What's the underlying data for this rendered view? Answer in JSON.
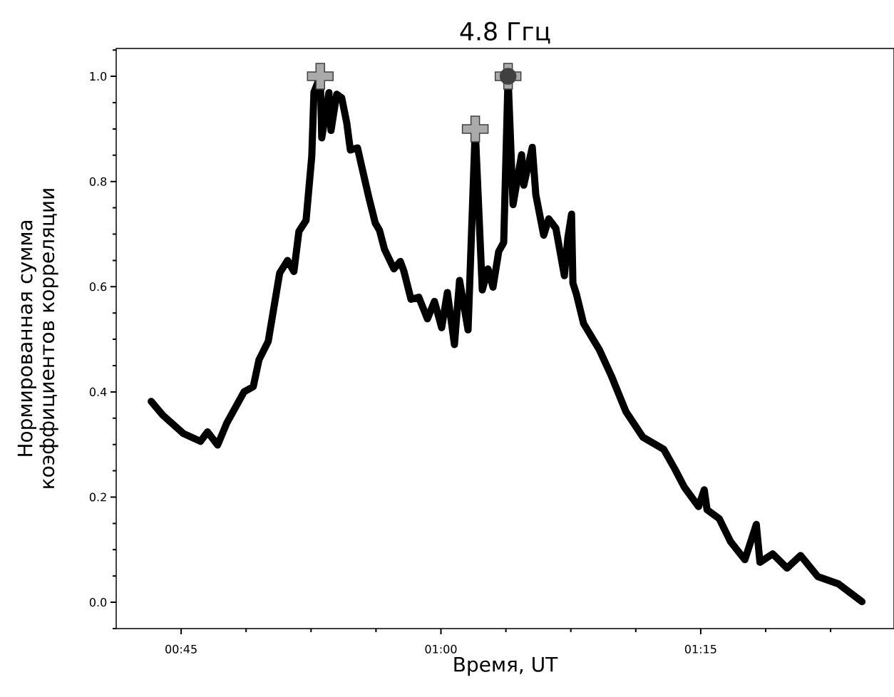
{
  "chart_data": {
    "type": "line",
    "title": "4.8 Ггц",
    "xlabel": "Время, UT",
    "ylabel": "Нормированная сумма коэффициентов корреляции",
    "xlim": [
      0.6875,
      1.436
    ],
    "ylim": [
      -0.05,
      1.053
    ],
    "xticks": [
      {
        "value": 0.75,
        "label": "00:45"
      },
      {
        "value": 0.8125,
        "label": null
      },
      {
        "value": 0.875,
        "label": null
      },
      {
        "value": 0.9375,
        "label": null
      },
      {
        "value": 1.0,
        "label": "01:00"
      },
      {
        "value": 1.0625,
        "label": null
      },
      {
        "value": 1.125,
        "label": null
      },
      {
        "value": 1.1875,
        "label": null
      },
      {
        "value": 1.25,
        "label": "01:15"
      },
      {
        "value": 1.3125,
        "label": null
      },
      {
        "value": 1.375,
        "label": null
      }
    ],
    "yticks": [
      {
        "value": -0.05,
        "label": null
      },
      {
        "value": 0,
        "label": "0.0"
      },
      {
        "value": 0.05,
        "label": null
      },
      {
        "value": 0.1,
        "label": null
      },
      {
        "value": 0.15,
        "label": null
      },
      {
        "value": 0.2,
        "label": "0.2"
      },
      {
        "value": 0.25,
        "label": null
      },
      {
        "value": 0.3,
        "label": null
      },
      {
        "value": 0.35,
        "label": null
      },
      {
        "value": 0.4,
        "label": "0.4"
      },
      {
        "value": 0.45,
        "label": null
      },
      {
        "value": 0.5,
        "label": null
      },
      {
        "value": 0.55,
        "label": null
      },
      {
        "value": 0.6,
        "label": "0.6"
      },
      {
        "value": 0.65,
        "label": null
      },
      {
        "value": 0.7,
        "label": null
      },
      {
        "value": 0.75,
        "label": null
      },
      {
        "value": 0.8,
        "label": "0.8"
      },
      {
        "value": 0.85,
        "label": null
      },
      {
        "value": 0.9,
        "label": null
      },
      {
        "value": 0.95,
        "label": null
      },
      {
        "value": 1.0,
        "label": "1.0"
      },
      {
        "value": 1.05,
        "label": null
      }
    ],
    "series": [
      {
        "color": "#000000",
        "marker": "none",
        "line_style": "solid",
        "x": [
          0.7212,
          0.7322,
          0.7521,
          0.7686,
          0.7754,
          0.7851,
          0.794,
          0.8105,
          0.8194,
          0.8249,
          0.8338,
          0.8448,
          0.8524,
          0.8585,
          0.8633,
          0.8702,
          0.8757,
          0.8778,
          0.8839,
          0.8853,
          0.8922,
          0.8942,
          0.8997,
          0.9045,
          0.9094,
          0.9128,
          0.9197,
          0.9251,
          0.9306,
          0.9368,
          0.9409,
          0.9457,
          0.9547,
          0.9609,
          0.9643,
          0.9712,
          0.9787,
          0.987,
          0.9938,
          1.0007,
          1.0062,
          1.013,
          1.0179,
          1.0261,
          1.033,
          1.0398,
          1.0453,
          1.0501,
          1.0556,
          1.0604,
          1.0646,
          1.0694,
          1.0776,
          1.0797,
          1.0879,
          1.0913,
          1.0989,
          1.1037,
          1.1106,
          1.1188,
          1.1222,
          1.1257,
          1.127,
          1.1305,
          1.1373,
          1.1525,
          1.1641,
          1.1779,
          1.1943,
          1.2143,
          1.2252,
          1.2342,
          1.2479,
          1.2534,
          1.2561,
          1.2678,
          1.2788,
          1.2925,
          1.3035,
          1.307,
          1.3193,
          1.3331,
          1.3461,
          1.3626,
          1.3825,
          1.4052
        ],
        "values": [
          0.382,
          0.356,
          0.321,
          0.306,
          0.324,
          0.299,
          0.341,
          0.4,
          0.41,
          0.461,
          0.496,
          0.626,
          0.65,
          0.629,
          0.705,
          0.726,
          0.848,
          0.97,
          1.0,
          0.883,
          0.969,
          0.897,
          0.966,
          0.959,
          0.911,
          0.86,
          0.864,
          0.817,
          0.77,
          0.721,
          0.707,
          0.671,
          0.634,
          0.648,
          0.63,
          0.576,
          0.58,
          0.539,
          0.572,
          0.522,
          0.589,
          0.49,
          0.612,
          0.518,
          0.9,
          0.594,
          0.634,
          0.599,
          0.667,
          0.684,
          1.0,
          0.756,
          0.851,
          0.793,
          0.865,
          0.775,
          0.698,
          0.729,
          0.711,
          0.621,
          0.694,
          0.738,
          0.607,
          0.585,
          0.53,
          0.48,
          0.43,
          0.363,
          0.314,
          0.291,
          0.253,
          0.219,
          0.182,
          0.214,
          0.176,
          0.159,
          0.115,
          0.081,
          0.148,
          0.076,
          0.092,
          0.065,
          0.089,
          0.049,
          0.035,
          0.001
        ]
      },
      {
        "type": "scatter",
        "color": "#aaaaaa",
        "marker": "cross",
        "x": [
          0.8839,
          1.033,
          1.0646
        ],
        "values": [
          1.0,
          0.9,
          1.0
        ]
      },
      {
        "type": "scatter",
        "color": "#404040",
        "marker": "circle",
        "x": [
          1.0646
        ],
        "values": [
          1.0
        ]
      }
    ]
  }
}
